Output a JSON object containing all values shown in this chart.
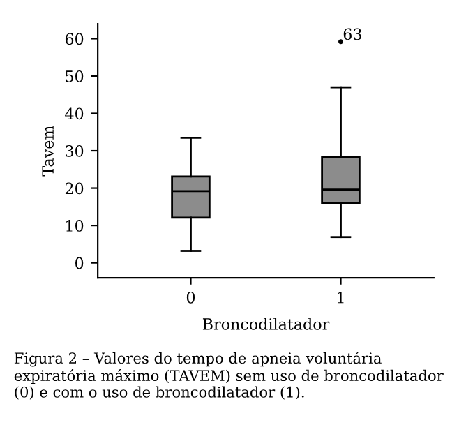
{
  "chart_data": {
    "type": "box",
    "categories": [
      "0",
      "1"
    ],
    "xlabel": "Broncodilatador",
    "ylabel": "Tavem",
    "boxes": [
      {
        "low": 3.2,
        "q1": 12.1,
        "median": 19.2,
        "q3": 23.1,
        "high": 33.5
      },
      {
        "low": 6.9,
        "q1": 16.0,
        "median": 19.6,
        "q3": 28.3,
        "high": 47.0,
        "outliers": [
          59.2
        ]
      }
    ],
    "color": "#8c8c8c",
    "ylim": [
      -4,
      64
    ],
    "yticks": [
      0,
      10,
      20,
      30,
      40,
      50,
      60
    ],
    "grid": false,
    "annotations": [
      "63",
      "Figura 2 – Valores do tempo de apneia voluntária expiratória máximo (TAVEM) sem uso de broncodilatador (0) e com o uso de broncodilatador (1)."
    ]
  }
}
